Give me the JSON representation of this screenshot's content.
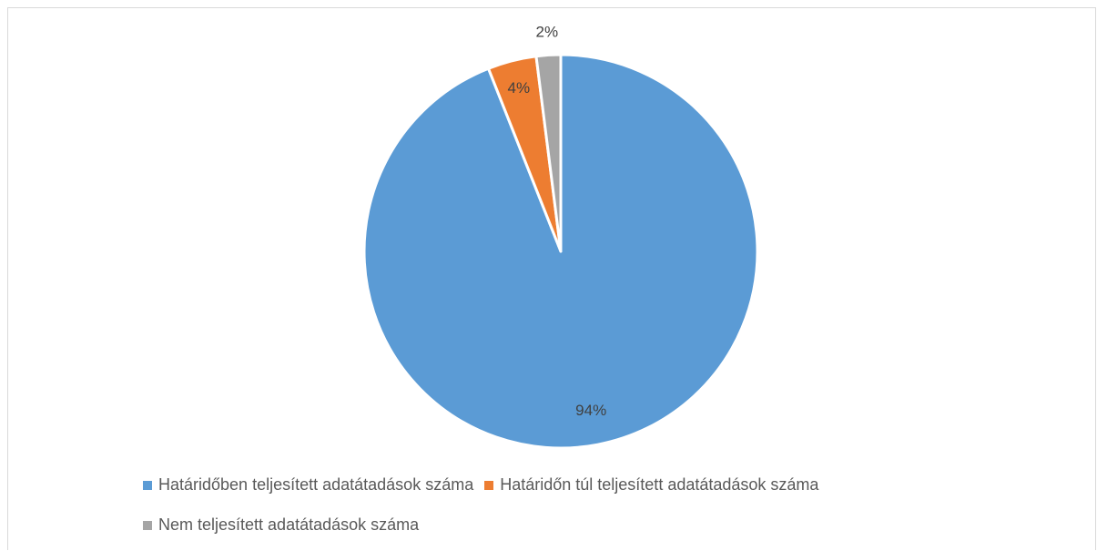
{
  "chart_data": {
    "type": "pie",
    "title": "",
    "slices": [
      {
        "label": "Határidőben teljesített adatátadások száma",
        "value": 94,
        "display": "94%",
        "color": "#5b9bd5"
      },
      {
        "label": "Határidőn túl teljesített adatátadások száma",
        "value": 4,
        "display": "4%",
        "color": "#ed7d31"
      },
      {
        "label": "Nem teljesített adatátadások száma",
        "value": 2,
        "display": "2%",
        "color": "#a5a5a5"
      }
    ],
    "legend_position": "bottom-left"
  }
}
